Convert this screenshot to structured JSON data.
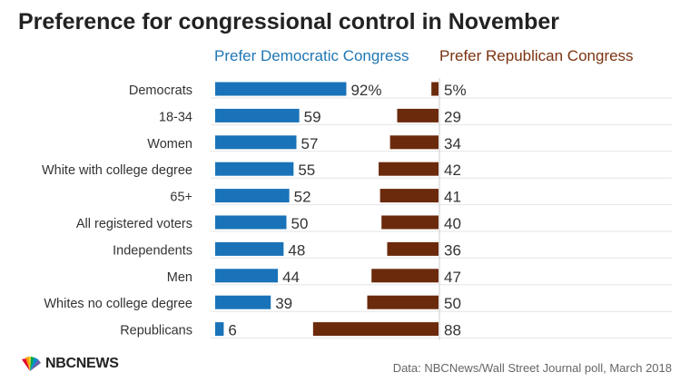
{
  "chart_data": {
    "type": "bar",
    "title": "Preference for congressional control in November",
    "categories": [
      "Democrats",
      "18-34",
      "Women",
      "White with college degree",
      "65+",
      "All registered voters",
      "Independents",
      "Men",
      "Whites no college degree",
      "Republicans"
    ],
    "series": [
      {
        "name": "Prefer Democratic Congress",
        "values": [
          92,
          59,
          57,
          55,
          52,
          50,
          48,
          44,
          39,
          6
        ],
        "labels": [
          "92%",
          "59",
          "57",
          "55",
          "52",
          "50",
          "48",
          "44",
          "39",
          "6"
        ],
        "color": "#1a73b8"
      },
      {
        "name": "Prefer Republican Congress",
        "values": [
          5,
          29,
          34,
          42,
          41,
          40,
          36,
          47,
          50,
          88
        ],
        "labels": [
          "5%",
          "29",
          "34",
          "42",
          "41",
          "40",
          "36",
          "47",
          "50",
          "88"
        ],
        "color": "#6b2a0c"
      }
    ],
    "grid": true
  },
  "legend": {
    "dem": "Prefer Democratic Congress",
    "rep": "Prefer Republican Congress"
  },
  "footer": {
    "logo": "NBCNEWS",
    "source": "Data: NBCNews/Wall Street Journal poll, March 2018"
  },
  "colors": {
    "dem": "#1a73b8",
    "rep": "#6b2a0c",
    "dem_text": "#1f77b4",
    "rep_text": "#7a3311",
    "grid": "#e6e6e6"
  }
}
